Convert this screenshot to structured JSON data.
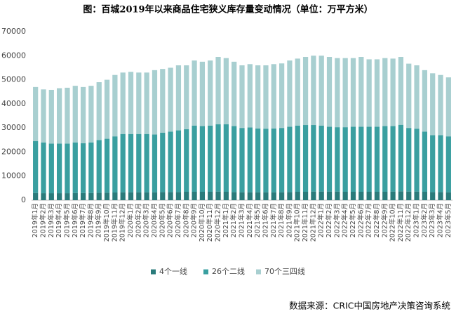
{
  "chart_data": {
    "type": "stacked_bar",
    "title": "图：百城2019年以来商品住宅狭义库存量变动情况（单位：万平方米）",
    "source": "数据来源：CRIC中国房地产决策咨询系统",
    "categories": [
      "2019年1月",
      "2019年2月",
      "2019年3月",
      "2019年4月",
      "2019年5月",
      "2019年6月",
      "2019年7月",
      "2019年8月",
      "2019年9月",
      "2019年10月",
      "2019年11月",
      "2019年12月",
      "2020年1月",
      "2020年2月",
      "2020年3月",
      "2020年4月",
      "2020年5月",
      "2020年6月",
      "2020年7月",
      "2020年8月",
      "2020年9月",
      "2020年10月",
      "2020年11月",
      "2020年12月",
      "2021年1月",
      "2021年2月",
      "2021年3月",
      "2021年4月",
      "2021年5月",
      "2021年6月",
      "2021年7月",
      "2021年8月",
      "2021年9月",
      "2021年10月",
      "2021年11月",
      "2021年12月",
      "2022年1月",
      "2022年2月",
      "2022年3月",
      "2022年4月",
      "2022年5月",
      "2022年6月",
      "2022年7月",
      "2022年8月",
      "2022年9月",
      "2022年10月",
      "2022年11月",
      "2022年12月",
      "2023年1月",
      "2023年2月",
      "2023年3月",
      "2023年4月",
      "2023年5月"
    ],
    "series": [
      {
        "name": "4个一线",
        "color": "#2a7b7b",
        "values": [
          3000,
          2900,
          2900,
          2900,
          2900,
          3000,
          3000,
          3000,
          3100,
          3100,
          3200,
          3300,
          3300,
          3300,
          3300,
          3300,
          3400,
          3400,
          3400,
          3500,
          3500,
          3500,
          3500,
          3600,
          3500,
          3400,
          3300,
          3300,
          3300,
          3300,
          3300,
          3300,
          3400,
          3500,
          3500,
          3600,
          3600,
          3600,
          3600,
          3500,
          3500,
          3500,
          3500,
          3500,
          3500,
          3600,
          3700,
          3600,
          3600,
          3500,
          3400,
          3400,
          3300
        ]
      },
      {
        "name": "26个二线",
        "color": "#3a9fa0",
        "values": [
          21500,
          21100,
          20600,
          20600,
          20600,
          21000,
          20700,
          21000,
          21900,
          22400,
          23300,
          24200,
          24200,
          24200,
          24200,
          24000,
          24600,
          25100,
          25600,
          26000,
          27500,
          27300,
          27500,
          27900,
          28000,
          27400,
          26700,
          26900,
          26500,
          26400,
          26500,
          26700,
          27100,
          27500,
          27700,
          27600,
          27400,
          26900,
          26700,
          26800,
          27000,
          27000,
          27000,
          27000,
          27300,
          27200,
          27600,
          26400,
          26100,
          25000,
          23600,
          23600,
          23200
        ]
      },
      {
        "name": "70个三四线",
        "color": "#a8cfd0",
        "values": [
          22500,
          22000,
          22300,
          23000,
          23200,
          23500,
          23300,
          23500,
          24000,
          24500,
          25500,
          25500,
          25800,
          25500,
          25500,
          26700,
          26500,
          26500,
          27000,
          26500,
          27000,
          26700,
          27000,
          28000,
          27500,
          26700,
          26000,
          26300,
          26200,
          26300,
          26700,
          26800,
          27500,
          27800,
          28300,
          28800,
          29000,
          29000,
          28700,
          28700,
          28500,
          29000,
          28000,
          28000,
          28200,
          28000,
          28200,
          26700,
          26300,
          25500,
          25700,
          25000,
          24500
        ]
      }
    ],
    "ylim": [
      0,
      70000
    ],
    "yticks": [
      0,
      10000,
      20000,
      30000,
      40000,
      50000,
      60000,
      70000
    ],
    "legend": "bottom"
  }
}
